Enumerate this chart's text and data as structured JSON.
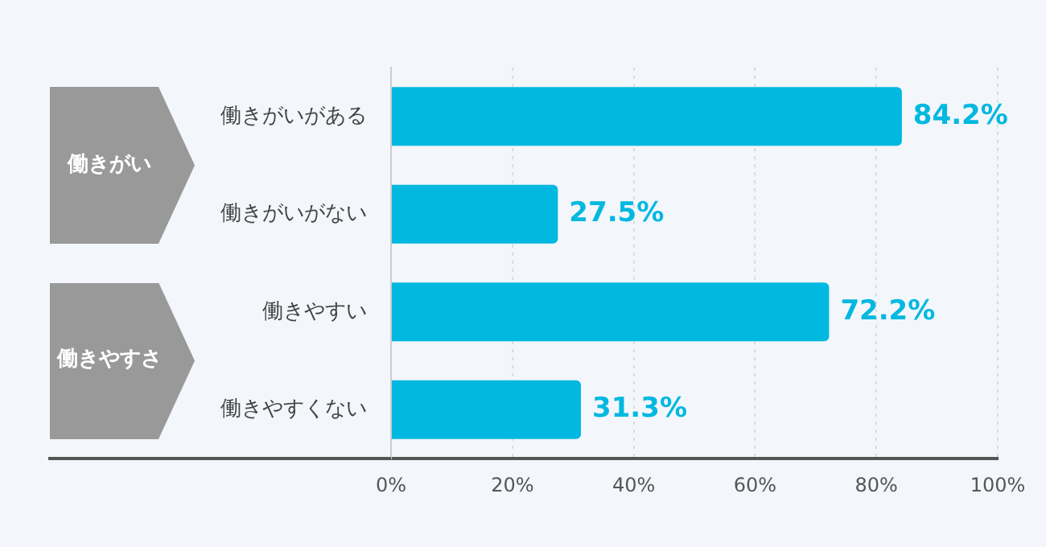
{
  "chart_data": {
    "type": "bar",
    "orientation": "horizontal",
    "categories": [
      "働きがいがある",
      "働きがいがない",
      "働きやすい",
      "働きやすくない"
    ],
    "values": [
      84.2,
      27.5,
      72.2,
      31.3
    ],
    "color": "#00b8e0",
    "value_labels": [
      "84.2%",
      "27.5%",
      "72.2%",
      "31.3%"
    ],
    "xlim": [
      0,
      100
    ],
    "xticks": [
      {
        "value": 0,
        "label": "0%"
      },
      {
        "value": 20,
        "label": "20%"
      },
      {
        "value": 40,
        "label": "40%"
      },
      {
        "value": 60,
        "label": "60%"
      },
      {
        "value": 80,
        "label": "80%"
      },
      {
        "value": 100,
        "label": "100%"
      }
    ],
    "grid": "x",
    "legend": false,
    "annotations": [
      "働きがい",
      "働きやすさ"
    ]
  }
}
